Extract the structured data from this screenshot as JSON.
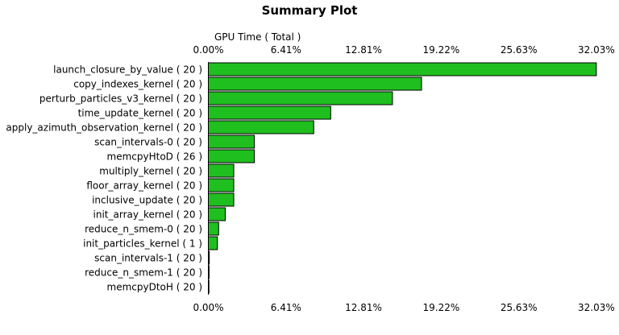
{
  "chart_data": {
    "type": "bar",
    "orientation": "horizontal",
    "title": "Summary Plot",
    "xlabel": "GPU Time ( Total )",
    "ylabel": "",
    "xlim": [
      0,
      34.2
    ],
    "x_ticks": [
      "0.00%",
      "6.41%",
      "12.81%",
      "19.22%",
      "25.63%",
      "32.03%"
    ],
    "x_tick_values": [
      0,
      6.41,
      12.81,
      19.22,
      25.63,
      32.03
    ],
    "x_tick_positions": [
      "top",
      "bottom"
    ],
    "grid": false,
    "bar_color": "#1fbf1f",
    "bar_edge_color": "#000000",
    "categories": [
      "launch_closure_by_value ( 20 )",
      "copy_indexes_kernel ( 20 )",
      "perturb_particles_v3_kernel ( 20 )",
      "time_update_kernel ( 20 )",
      "apply_azimuth_observation_kernel ( 20 )",
      "scan_intervals-0 ( 20 )",
      "memcpyHtoD ( 26 )",
      "multiply_kernel ( 20 )",
      "floor_array_kernel ( 20 )",
      "inclusive_update ( 20 )",
      "init_array_kernel ( 20 )",
      "reduce_n_smem-0 ( 20 )",
      "init_particles_kernel ( 1 )",
      "scan_intervals-1 ( 20 )",
      "reduce_n_smem-1 ( 20 )",
      "memcpyDtoH ( 20 )"
    ],
    "values": [
      32.03,
      17.6,
      15.2,
      10.1,
      8.7,
      3.8,
      3.8,
      2.1,
      2.1,
      2.1,
      1.4,
      0.85,
      0.75,
      0.08,
      0.06,
      0.05
    ]
  }
}
